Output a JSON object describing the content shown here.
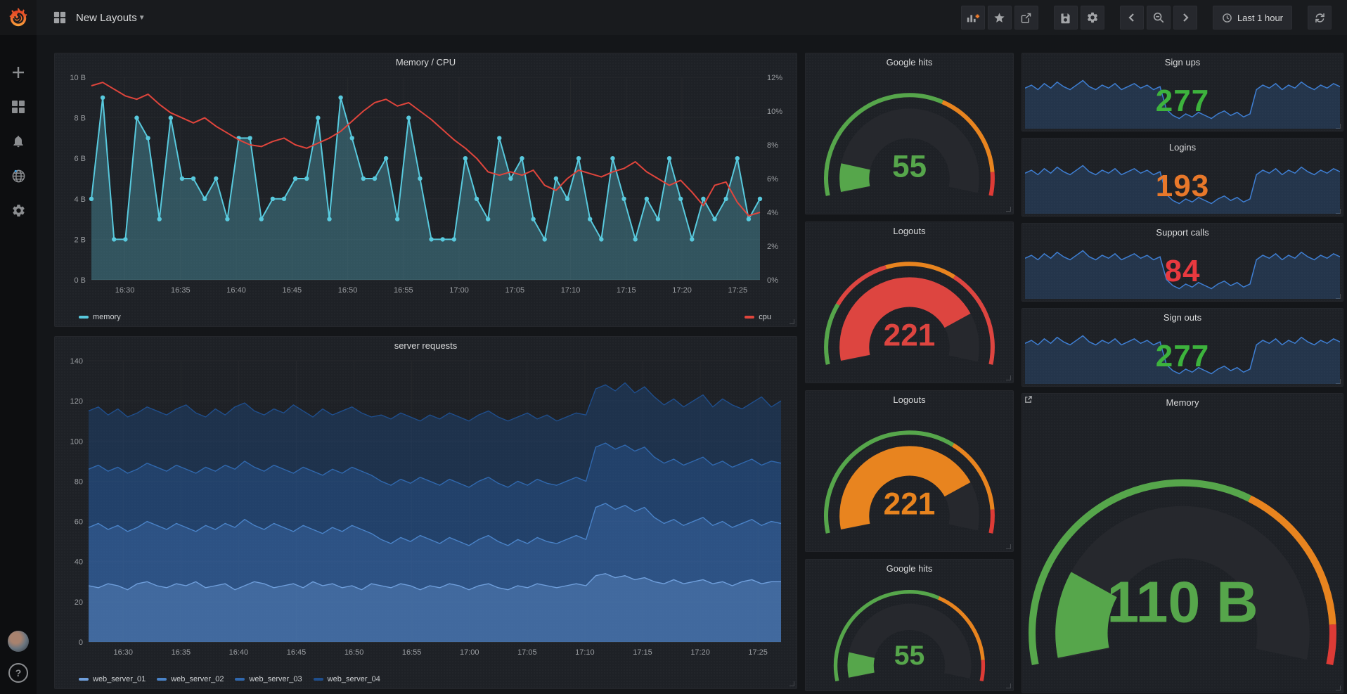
{
  "nav": {
    "title": "New Layouts",
    "time_range": "Last 1 hour"
  },
  "sidebar": {
    "items": [
      "create",
      "dashboards",
      "alerting",
      "explore",
      "configuration"
    ],
    "bottom": [
      "avatar",
      "help"
    ]
  },
  "chart_data": {
    "memory_cpu": {
      "type": "line",
      "title": "Memory / CPU",
      "x_ticks": [
        "16:30",
        "16:35",
        "16:40",
        "16:45",
        "16:50",
        "16:55",
        "17:00",
        "17:05",
        "17:10",
        "17:15",
        "17:20",
        "17:25"
      ],
      "left_axis": {
        "labels": [
          "0 B",
          "2 B",
          "4 B",
          "6 B",
          "8 B",
          "10 B"
        ],
        "min": 0,
        "max": 10
      },
      "right_axis": {
        "labels": [
          "0%",
          "2%",
          "4%",
          "6%",
          "8%",
          "10%",
          "12%"
        ],
        "min": 0,
        "max": 12
      },
      "series": [
        {
          "name": "memory",
          "color": "#58c9dd",
          "fill": "rgba(88,180,200,0.35)",
          "axis": "left",
          "values": [
            4,
            9,
            2,
            2,
            8,
            7,
            3,
            8,
            5,
            5,
            4,
            5,
            3,
            7,
            7,
            3,
            4,
            4,
            5,
            5,
            8,
            3,
            9,
            7,
            5,
            5,
            6,
            3,
            8,
            5,
            2,
            2,
            2,
            6,
            4,
            3,
            7,
            5,
            6,
            3,
            2,
            5,
            4,
            6,
            3,
            2,
            6,
            4,
            2,
            4,
            3,
            6,
            4,
            2,
            4,
            3,
            4,
            6,
            3,
            4
          ]
        },
        {
          "name": "cpu",
          "color": "#e0453c",
          "axis": "right",
          "values": [
            11.5,
            11.7,
            11.3,
            10.9,
            10.7,
            11.0,
            10.4,
            9.9,
            9.6,
            9.3,
            9.6,
            9.1,
            8.7,
            8.3,
            8.0,
            7.9,
            8.2,
            8.4,
            8.0,
            7.8,
            8.1,
            8.4,
            8.8,
            9.4,
            10.0,
            10.5,
            10.7,
            10.3,
            10.5,
            10.0,
            9.5,
            8.9,
            8.3,
            7.8,
            7.2,
            6.4,
            6.2,
            6.4,
            6.2,
            6.5,
            5.6,
            5.3,
            6.0,
            6.5,
            6.3,
            6.1,
            6.4,
            6.6,
            7.0,
            6.4,
            6.0,
            5.6,
            5.9,
            5.2,
            4.4,
            5.6,
            5.8,
            4.6,
            3.8,
            4.0
          ]
        }
      ]
    },
    "server_requests": {
      "type": "area",
      "title": "server requests",
      "x_ticks": [
        "16:30",
        "16:35",
        "16:40",
        "16:45",
        "16:50",
        "16:55",
        "17:00",
        "17:05",
        "17:10",
        "17:15",
        "17:20",
        "17:25"
      ],
      "y_axis": {
        "labels": [
          "0",
          "20",
          "40",
          "60",
          "80",
          "100",
          "120",
          "140"
        ],
        "min": 0,
        "max": 140
      },
      "series": [
        {
          "name": "web_server_01",
          "color": "#6f9fdc",
          "fill": "rgba(111,159,220,0.30)",
          "values": [
            28,
            27,
            29,
            28,
            26,
            29,
            30,
            28,
            27,
            29,
            28,
            30,
            27,
            28,
            29,
            26,
            28,
            30,
            29,
            27,
            28,
            29,
            27,
            30,
            28,
            29,
            27,
            28,
            26,
            29,
            28,
            27,
            29,
            28,
            26,
            28,
            27,
            29,
            28,
            26,
            28,
            29,
            27,
            26,
            28,
            27,
            29,
            28,
            27,
            28,
            29,
            28,
            33,
            34,
            32,
            33,
            31,
            32,
            30,
            29,
            31,
            29,
            30,
            31,
            29,
            30,
            28,
            30,
            31,
            29,
            30,
            30
          ]
        },
        {
          "name": "web_server_02",
          "color": "#4a83c8",
          "fill": "rgba(74,131,200,0.28)",
          "values": [
            57,
            59,
            56,
            58,
            55,
            57,
            60,
            58,
            56,
            59,
            57,
            55,
            58,
            56,
            59,
            57,
            61,
            58,
            56,
            59,
            57,
            55,
            58,
            56,
            54,
            57,
            55,
            58,
            56,
            54,
            51,
            49,
            52,
            50,
            53,
            51,
            49,
            52,
            50,
            48,
            51,
            53,
            50,
            48,
            51,
            49,
            52,
            50,
            49,
            51,
            53,
            51,
            67,
            69,
            66,
            68,
            65,
            67,
            62,
            59,
            61,
            58,
            60,
            62,
            58,
            60,
            57,
            59,
            61,
            58,
            60,
            59
          ]
        },
        {
          "name": "web_server_03",
          "color": "#3068ae",
          "fill": "rgba(48,104,174,0.30)",
          "values": [
            86,
            88,
            85,
            87,
            84,
            86,
            89,
            87,
            85,
            88,
            86,
            84,
            87,
            85,
            88,
            86,
            90,
            87,
            85,
            88,
            86,
            84,
            87,
            85,
            83,
            86,
            84,
            87,
            85,
            83,
            80,
            78,
            81,
            79,
            82,
            80,
            78,
            81,
            79,
            77,
            80,
            82,
            79,
            77,
            80,
            78,
            81,
            79,
            78,
            80,
            82,
            80,
            97,
            99,
            96,
            98,
            95,
            97,
            92,
            89,
            91,
            88,
            90,
            92,
            88,
            90,
            87,
            89,
            91,
            88,
            90,
            89
          ]
        },
        {
          "name": "web_server_04",
          "color": "#1f4e8c",
          "fill": "rgba(31,78,140,0.38)",
          "values": [
            115,
            117,
            113,
            116,
            112,
            114,
            117,
            115,
            113,
            116,
            118,
            114,
            112,
            116,
            113,
            117,
            119,
            115,
            113,
            116,
            114,
            118,
            115,
            112,
            116,
            113,
            115,
            117,
            114,
            112,
            113,
            111,
            114,
            112,
            110,
            113,
            111,
            114,
            112,
            110,
            113,
            115,
            112,
            110,
            112,
            114,
            111,
            113,
            110,
            112,
            114,
            113,
            126,
            128,
            125,
            129,
            124,
            127,
            122,
            118,
            121,
            117,
            120,
            123,
            117,
            121,
            118,
            116,
            119,
            122,
            117,
            120
          ]
        }
      ]
    },
    "gauges": [
      {
        "title": "Google hits",
        "value": "55",
        "color": "#56a64b",
        "fraction": 0.12,
        "thresholds": [
          {
            "color": "#56a64b",
            "from": 0,
            "to": 0.615
          },
          {
            "color": "#e8841f",
            "from": 0.615,
            "to": 0.92
          },
          {
            "color": "#dd3b36",
            "from": 0.92,
            "to": 1
          }
        ]
      },
      {
        "title": "Logouts",
        "value": "221",
        "color": "#dd4540",
        "fraction": 0.8,
        "thresholds": [
          {
            "color": "#56a64b",
            "from": 0,
            "to": 0.21
          },
          {
            "color": "#dd4540",
            "from": 0.21,
            "to": 0.42
          },
          {
            "color": "#e8841f",
            "from": 0.42,
            "to": 0.66
          },
          {
            "color": "#dd4540",
            "from": 0.66,
            "to": 1
          }
        ]
      },
      {
        "title": "Logouts",
        "value": "221",
        "color": "#e8841f",
        "fraction": 0.8,
        "thresholds": [
          {
            "color": "#56a64b",
            "from": 0,
            "to": 0.655
          },
          {
            "color": "#e8841f",
            "from": 0.655,
            "to": 0.92
          },
          {
            "color": "#dd3b36",
            "from": 0.92,
            "to": 1
          }
        ]
      },
      {
        "title": "Google hits",
        "value": "55",
        "color": "#56a64b",
        "fraction": 0.12,
        "thresholds": [
          {
            "color": "#56a64b",
            "from": 0,
            "to": 0.615
          },
          {
            "color": "#e8841f",
            "from": 0.615,
            "to": 0.92
          },
          {
            "color": "#dd3b36",
            "from": 0.92,
            "to": 1
          }
        ]
      }
    ],
    "memory_gauge": {
      "title": "Memory",
      "value": "110 B",
      "color": "#56a64b",
      "fraction": 0.2,
      "thresholds": [
        {
          "color": "#56a64b",
          "from": 0,
          "to": 0.63
        },
        {
          "color": "#e8841f",
          "from": 0.63,
          "to": 0.925
        },
        {
          "color": "#dd3b36",
          "from": 0.925,
          "to": 1
        }
      ]
    },
    "stats": [
      {
        "title": "Sign ups",
        "value": "277",
        "color": "#3db33d"
      },
      {
        "title": "Logins",
        "value": "193",
        "color": "#e8782a"
      },
      {
        "title": "Support calls",
        "value": "84",
        "color": "#e8393f"
      },
      {
        "title": "Sign outs",
        "value": "277",
        "color": "#3db33d"
      }
    ],
    "stats_sparkline": {
      "color": "#3e7ed2",
      "fill": "rgba(61,126,210,0.22)",
      "values": [
        113,
        115,
        112,
        116,
        113,
        117,
        114,
        112,
        115,
        118,
        114,
        112,
        115,
        113,
        116,
        112,
        114,
        116,
        113,
        115,
        112,
        114,
        99,
        95,
        93,
        96,
        94,
        97,
        95,
        93,
        96,
        98,
        95,
        97,
        94,
        96,
        112,
        115,
        113,
        116,
        112,
        115,
        113,
        117,
        114,
        112,
        115,
        113,
        116,
        114
      ]
    }
  }
}
